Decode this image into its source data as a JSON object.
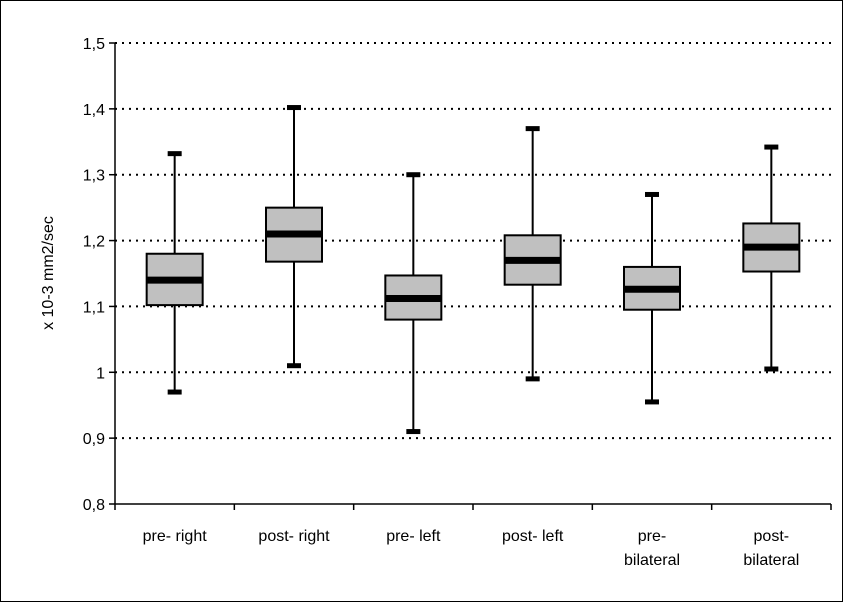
{
  "chart_data": {
    "type": "boxplot",
    "title": "",
    "xlabel": "",
    "ylabel": "x 10-3 mm2/sec",
    "ylim": [
      0.8,
      1.5
    ],
    "yticks": [
      "0,8",
      "0,9",
      "1",
      "1,1",
      "1,2",
      "1,3",
      "1,4",
      "1,5"
    ],
    "ytick_values": [
      0.8,
      0.9,
      1.0,
      1.1,
      1.2,
      1.3,
      1.4,
      1.5
    ],
    "grid": "horizontal dotted",
    "categories": [
      [
        "pre- right"
      ],
      [
        "post- right"
      ],
      [
        "pre- left"
      ],
      [
        "post- left"
      ],
      [
        "pre-",
        "bilateral"
      ],
      [
        "post-",
        "bilateral"
      ]
    ],
    "boxes": [
      {
        "min": 0.97,
        "q1": 1.102,
        "median": 1.14,
        "q3": 1.18,
        "max": 1.332
      },
      {
        "min": 1.01,
        "q1": 1.168,
        "median": 1.21,
        "q3": 1.25,
        "max": 1.402
      },
      {
        "min": 0.91,
        "q1": 1.08,
        "median": 1.112,
        "q3": 1.147,
        "max": 1.3
      },
      {
        "min": 0.99,
        "q1": 1.133,
        "median": 1.17,
        "q3": 1.208,
        "max": 1.37
      },
      {
        "min": 0.955,
        "q1": 1.095,
        "median": 1.126,
        "q3": 1.16,
        "max": 1.27
      },
      {
        "min": 1.005,
        "q1": 1.153,
        "median": 1.19,
        "q3": 1.226,
        "max": 1.342
      }
    ],
    "colors": {
      "box_fill": "#c0c0c0",
      "line": "#000000",
      "grid": "#000000"
    }
  }
}
